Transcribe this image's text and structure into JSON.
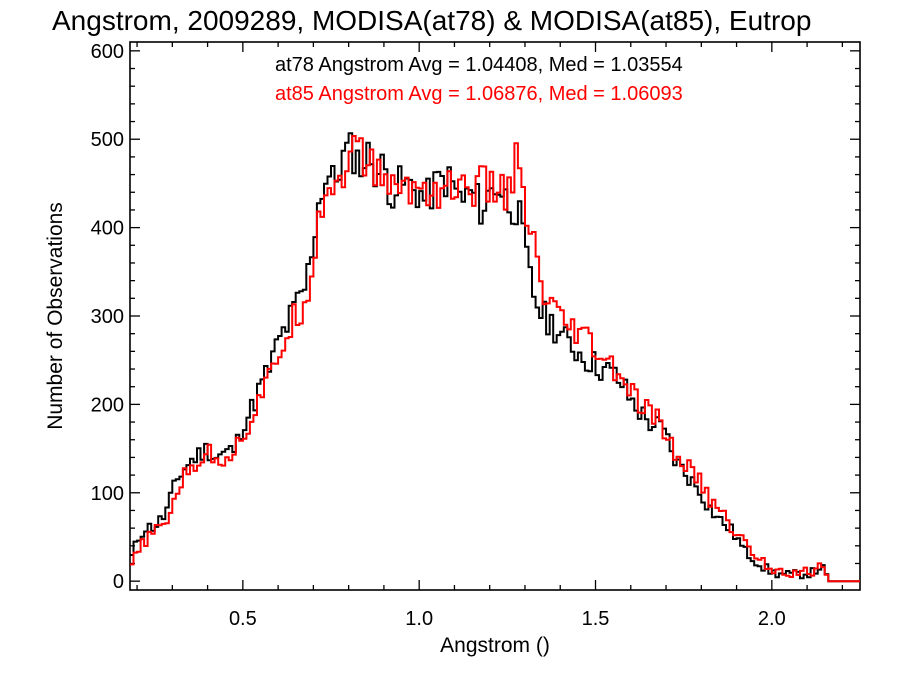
{
  "chart_data": {
    "type": "line",
    "title": "Angstrom, 2009289, MODISA(at78) & MODISA(at85), Eutrop",
    "xlabel": "Angstrom ()",
    "ylabel": "Number of Observations",
    "xlim": [
      0.18,
      2.25
    ],
    "ylim": [
      -10,
      610
    ],
    "x_ticks": [
      0.5,
      1.0,
      1.5,
      2.0
    ],
    "x_tick_labels": [
      "0.5",
      "1.0",
      "1.5",
      "2.0"
    ],
    "y_ticks": [
      0,
      100,
      200,
      300,
      400,
      500,
      600
    ],
    "y_tick_labels": [
      "0",
      "100",
      "200",
      "300",
      "400",
      "500",
      "600"
    ],
    "grid": false,
    "legend_position": "top",
    "series": [
      {
        "name": "at78",
        "color": "#000000",
        "annotation": "at78 Angstrom Avg = 1.04408, Med = 1.03554",
        "x": [
          0.18,
          0.2,
          0.22,
          0.25,
          0.28,
          0.3,
          0.32,
          0.35,
          0.38,
          0.4,
          0.42,
          0.45,
          0.48,
          0.5,
          0.52,
          0.55,
          0.58,
          0.6,
          0.62,
          0.65,
          0.68,
          0.7,
          0.72,
          0.74,
          0.76,
          0.78,
          0.8,
          0.82,
          0.84,
          0.86,
          0.88,
          0.9,
          0.92,
          0.95,
          0.98,
          1.0,
          1.02,
          1.05,
          1.08,
          1.1,
          1.12,
          1.15,
          1.18,
          1.2,
          1.22,
          1.25,
          1.28,
          1.3,
          1.32,
          1.35,
          1.38,
          1.4,
          1.42,
          1.45,
          1.48,
          1.5,
          1.52,
          1.55,
          1.58,
          1.6,
          1.62,
          1.65,
          1.68,
          1.7,
          1.72,
          1.75,
          1.78,
          1.8,
          1.82,
          1.85,
          1.88,
          1.9,
          1.92,
          1.95,
          1.98,
          2.0,
          2.02,
          2.05,
          2.08,
          2.1,
          2.12,
          2.14,
          2.16,
          2.18,
          2.2,
          2.25
        ],
        "values": [
          22,
          45,
          60,
          62,
          75,
          100,
          120,
          135,
          145,
          150,
          140,
          145,
          150,
          180,
          190,
          220,
          245,
          270,
          285,
          310,
          335,
          390,
          440,
          460,
          450,
          475,
          490,
          480,
          470,
          485,
          460,
          470,
          440,
          450,
          445,
          440,
          430,
          450,
          455,
          445,
          430,
          440,
          420,
          440,
          450,
          430,
          420,
          375,
          330,
          300,
          290,
          280,
          270,
          260,
          250,
          245,
          240,
          235,
          220,
          205,
          195,
          180,
          175,
          165,
          140,
          125,
          110,
          100,
          85,
          70,
          60,
          50,
          35,
          25,
          15,
          10,
          8,
          7,
          8,
          9,
          10,
          18,
          0,
          0,
          0,
          0
        ]
      },
      {
        "name": "at85",
        "color": "#ff0000",
        "annotation": "at85 Angstrom Avg = 1.06876, Med = 1.06093",
        "x": [
          0.18,
          0.2,
          0.22,
          0.25,
          0.28,
          0.3,
          0.32,
          0.35,
          0.38,
          0.4,
          0.42,
          0.45,
          0.48,
          0.5,
          0.52,
          0.55,
          0.58,
          0.6,
          0.62,
          0.65,
          0.68,
          0.7,
          0.72,
          0.74,
          0.76,
          0.78,
          0.8,
          0.82,
          0.84,
          0.86,
          0.88,
          0.9,
          0.92,
          0.95,
          0.98,
          1.0,
          1.02,
          1.05,
          1.08,
          1.1,
          1.12,
          1.15,
          1.18,
          1.2,
          1.22,
          1.25,
          1.28,
          1.3,
          1.32,
          1.35,
          1.38,
          1.4,
          1.42,
          1.45,
          1.48,
          1.5,
          1.52,
          1.55,
          1.58,
          1.6,
          1.62,
          1.65,
          1.68,
          1.7,
          1.72,
          1.75,
          1.78,
          1.8,
          1.82,
          1.85,
          1.88,
          1.9,
          1.92,
          1.95,
          1.98,
          2.0,
          2.02,
          2.05,
          2.08,
          2.1,
          2.12,
          2.14,
          2.16,
          2.18,
          2.2,
          2.25
        ],
        "values": [
          15,
          30,
          45,
          55,
          65,
          85,
          110,
          125,
          140,
          145,
          140,
          140,
          150,
          165,
          180,
          210,
          230,
          255,
          275,
          300,
          320,
          370,
          420,
          450,
          445,
          460,
          480,
          490,
          480,
          470,
          460,
          465,
          440,
          450,
          440,
          450,
          445,
          440,
          450,
          445,
          440,
          445,
          450,
          440,
          445,
          440,
          480,
          410,
          390,
          320,
          310,
          290,
          285,
          280,
          270,
          260,
          250,
          240,
          225,
          215,
          200,
          190,
          180,
          170,
          145,
          135,
          120,
          110,
          95,
          80,
          65,
          55,
          45,
          30,
          20,
          15,
          12,
          10,
          10,
          10,
          12,
          20,
          0,
          0,
          0,
          0
        ]
      }
    ]
  }
}
